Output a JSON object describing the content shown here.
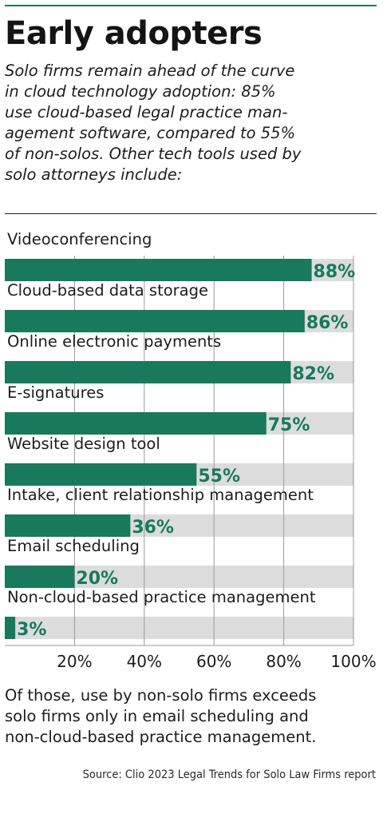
{
  "headline": "Early adopters",
  "intro_lines": [
    "Solo firms remain ahead of the curve",
    "in cloud technology adoption: 85%",
    "use cloud-based legal practice man-",
    "agement software, compared to 55%",
    "of non-solos. Other tech tools used by",
    "solo attorneys include:"
  ],
  "footnote_lines": [
    "Of those, use by non-solo firms exceeds",
    "solo firms only in email scheduling and",
    "non-cloud-based practice management."
  ],
  "source": "Source: Clio 2023 Legal Trends for Solo Law Firms report",
  "colors": {
    "bar": "#18795c",
    "track": "#dcdcdc",
    "value_label": "#18795c",
    "rule": "#1b7a5e"
  },
  "chart_data": {
    "type": "bar",
    "orientation": "horizontal",
    "categories": [
      "Videoconferencing",
      "Cloud-based data storage",
      "Online electronic payments",
      "E-signatures",
      "Website design tool",
      "Intake, client relationship management",
      "Email scheduling",
      "Non-cloud-based practice management"
    ],
    "values": [
      88,
      86,
      82,
      75,
      55,
      36,
      20,
      3
    ],
    "value_labels": [
      "88%",
      "86%",
      "82%",
      "75%",
      "55%",
      "36%",
      "20%",
      "3%"
    ],
    "xlim": [
      0,
      100
    ],
    "xticks": [
      20,
      40,
      60,
      80,
      100
    ],
    "xtick_labels": [
      "20%",
      "40%",
      "60%",
      "80%",
      "100%"
    ],
    "grid": "vertical",
    "legend": "none"
  }
}
